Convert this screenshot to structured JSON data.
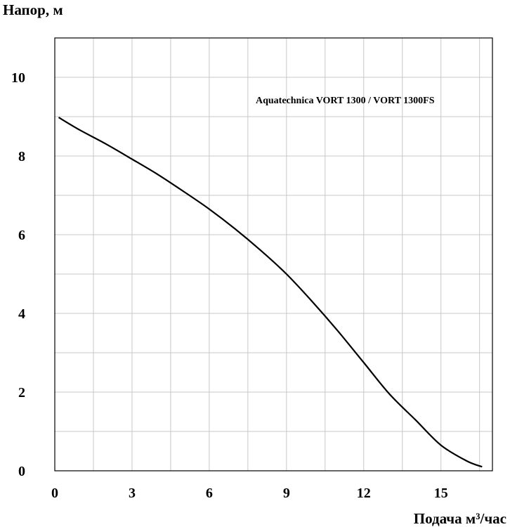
{
  "chart_data": {
    "type": "line",
    "ylabel": "Напор, м",
    "xlabel": "Подача м³/час",
    "annotation": "Aquatechnica VORT 1300 / VORT 1300FS",
    "xlim": [
      0,
      17
    ],
    "ylim": [
      0,
      11
    ],
    "x_ticks": [
      0,
      3,
      6,
      9,
      12,
      15
    ],
    "y_ticks": [
      0,
      2,
      4,
      6,
      8,
      10
    ],
    "x_grid": [
      0,
      1.5,
      3,
      4.5,
      6,
      7.5,
      9,
      10.5,
      12,
      13.5,
      15,
      16.5
    ],
    "y_grid": [
      0,
      1,
      2,
      3,
      4,
      5,
      6,
      7,
      8,
      9,
      10,
      11
    ],
    "grid": true,
    "series": [
      {
        "x": [
          0.15,
          1,
          2,
          3,
          4,
          5,
          6,
          7,
          8,
          9,
          10,
          11,
          12,
          13,
          14,
          15,
          16,
          16.6
        ],
        "y": [
          8.98,
          8.65,
          8.3,
          7.92,
          7.53,
          7.1,
          6.65,
          6.15,
          5.6,
          5.0,
          4.3,
          3.55,
          2.75,
          1.95,
          1.3,
          0.65,
          0.25,
          0.1
        ]
      }
    ]
  }
}
